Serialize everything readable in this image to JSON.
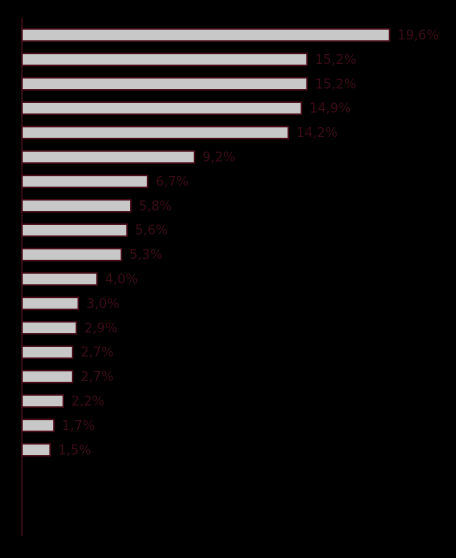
{
  "chart_data": {
    "type": "bar",
    "orientation": "horizontal",
    "title": "",
    "xlabel": "",
    "ylabel": "",
    "categories": [],
    "values": [
      19.6,
      15.2,
      15.2,
      14.9,
      14.2,
      9.2,
      6.7,
      5.8,
      5.6,
      5.3,
      4.0,
      3.0,
      2.9,
      2.7,
      2.7,
      2.2,
      1.7,
      1.5
    ],
    "labels": [
      "19,6%",
      "15,2%",
      "15,2%",
      "14,9%",
      "14,2%",
      "9,2%",
      "6,7%",
      "5,8%",
      "5,6%",
      "5,3%",
      "4,0%",
      "3,0%",
      "2,9%",
      "2,7%",
      "2,7%",
      "2,2%",
      "1,7%",
      "1,5%"
    ],
    "xlim": [
      0,
      20
    ],
    "grid": false,
    "legend": "none",
    "colors": {
      "background": "#000000",
      "bar_fill": "#c8c8c8",
      "bar_stroke": "#4a0e1a",
      "label": "#3b0b16",
      "axis": "#3a0d15"
    }
  }
}
